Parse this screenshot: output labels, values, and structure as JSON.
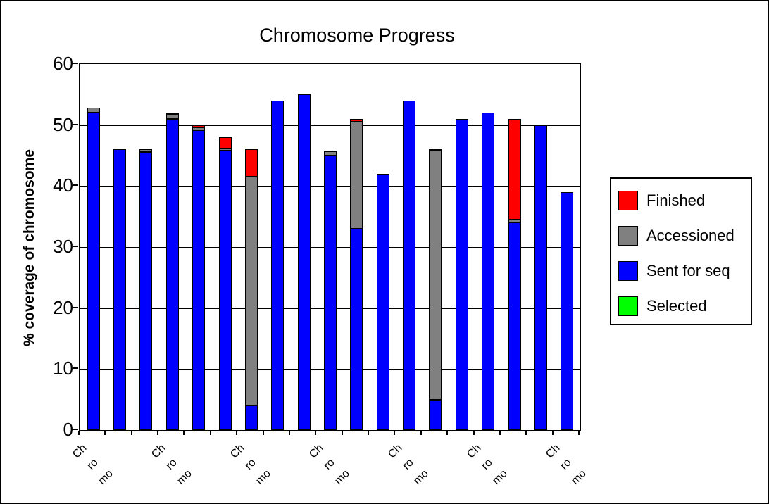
{
  "chart_data": {
    "type": "bar",
    "stacked": true,
    "title": "Chromosome Progress",
    "xlabel": "",
    "ylabel": "% coverage of chromosome",
    "ylim": [
      0,
      60
    ],
    "yticks": [
      0,
      10,
      20,
      30,
      40,
      50,
      60
    ],
    "grid": "horizontal gridlines every 10",
    "n_categories": 19,
    "xtick_label_every": 3,
    "xtick_label_lines": [
      "Ch",
      "ro",
      "mo"
    ],
    "legend_position": "right",
    "series": [
      {
        "name": "Sent for seq",
        "color": "#0000ff",
        "values": [
          52,
          46,
          45.6,
          51,
          49.2,
          45.8,
          4,
          54,
          55,
          45,
          33,
          42,
          54,
          5,
          51,
          52,
          34,
          50,
          39
        ]
      },
      {
        "name": "Accessioned",
        "color": "#808080",
        "values": [
          0.8,
          0,
          0.5,
          0.8,
          0.4,
          0.4,
          37.5,
          0,
          0,
          0.7,
          17.6,
          0,
          0,
          40.8,
          0,
          0,
          0.5,
          0,
          0
        ]
      },
      {
        "name": "Finished",
        "color": "#ff0000",
        "values": [
          0,
          0,
          0,
          0.2,
          0.4,
          1.8,
          4.5,
          0,
          0,
          0,
          0.4,
          0,
          0,
          0.2,
          0,
          0,
          16.5,
          0,
          0
        ]
      },
      {
        "name": "Selected",
        "color": "#00ff00",
        "values": [
          0,
          0,
          0,
          0,
          0,
          0,
          0,
          0,
          0,
          0,
          0,
          0,
          0,
          0,
          0,
          0,
          0,
          0,
          0
        ]
      }
    ],
    "bar_totals": [
      52.8,
      46,
      46.1,
      52,
      50,
      48,
      46,
      54,
      55,
      45.7,
      51,
      42,
      54,
      46,
      51,
      52,
      51,
      50,
      39
    ]
  },
  "legend": {
    "items": [
      {
        "label": "Finished",
        "color": "#ff0000"
      },
      {
        "label": "Accessioned",
        "color": "#808080"
      },
      {
        "label": "Sent for seq",
        "color": "#0000ff"
      },
      {
        "label": "Selected",
        "color": "#00ff00"
      }
    ]
  },
  "colors": {
    "axis": "#000000",
    "background": "#ffffff"
  }
}
